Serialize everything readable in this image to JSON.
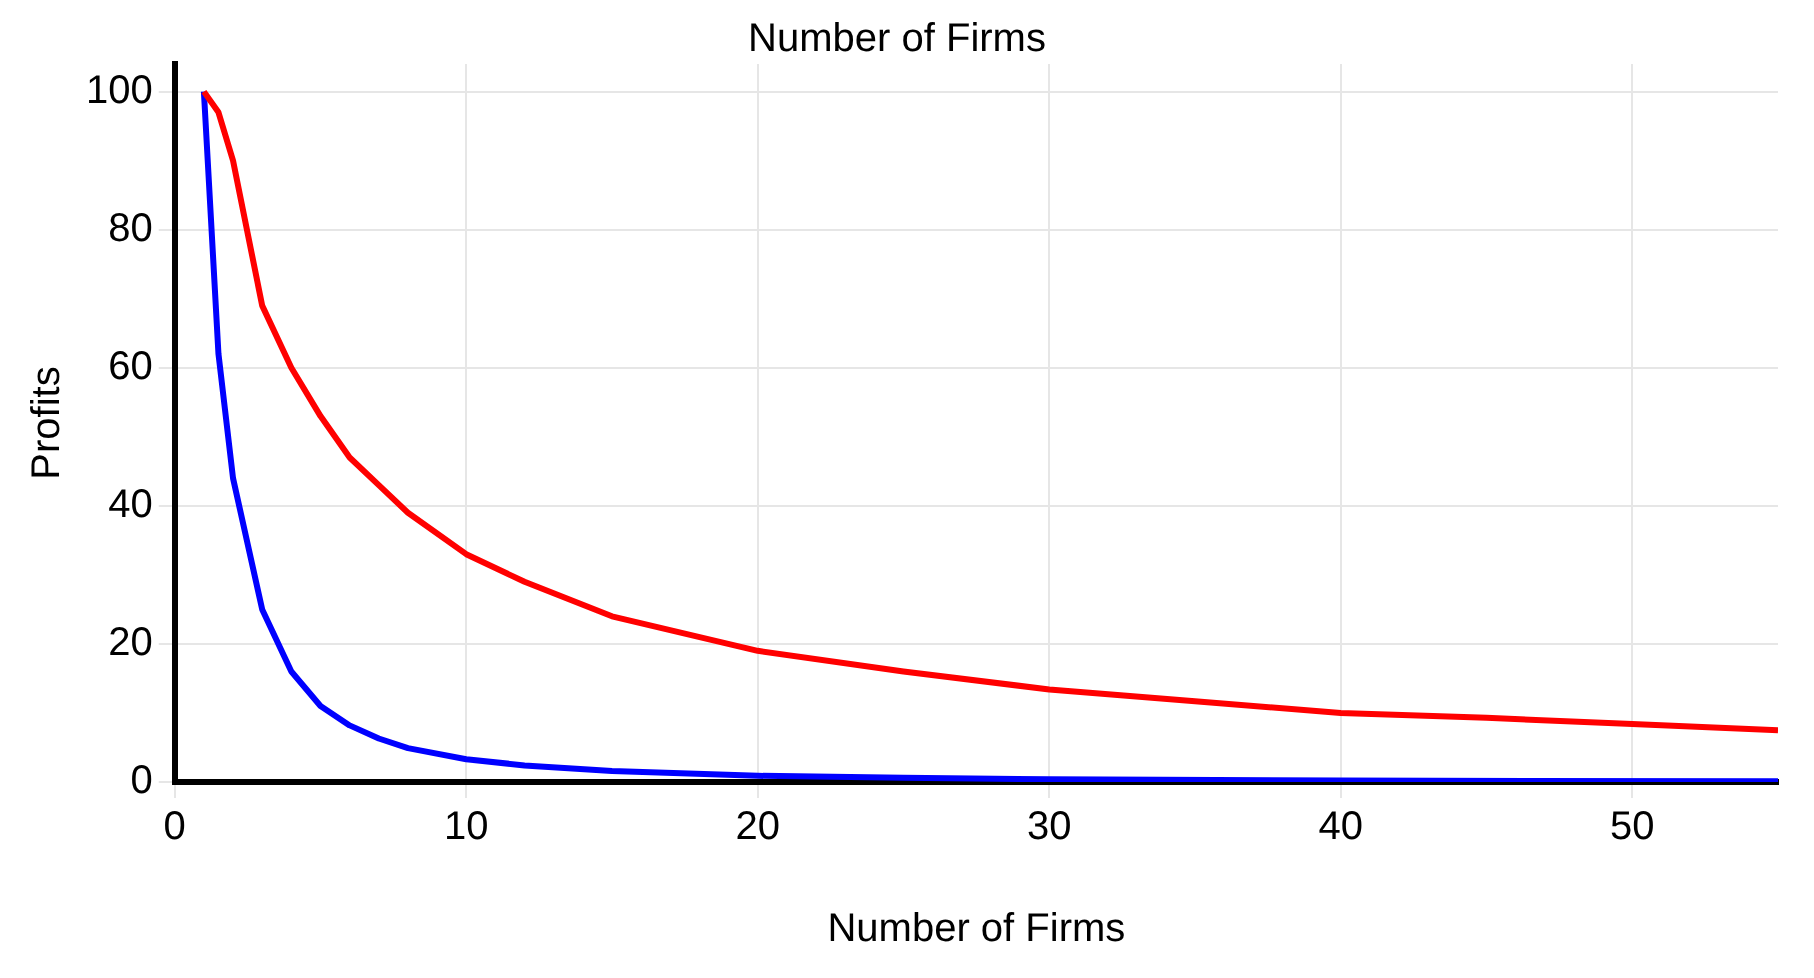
{
  "chart_data": {
    "type": "line",
    "title": "Number of Firms",
    "xlabel": "Number of Firms",
    "ylabel": "Profits",
    "xlim": [
      0,
      55
    ],
    "xticks": [
      0,
      10,
      20,
      30,
      40,
      50
    ],
    "ylim": [
      0,
      104
    ],
    "yticks": [
      0,
      20,
      40,
      60,
      80,
      100
    ],
    "grid": true,
    "legend": false,
    "marker": "none",
    "series": [
      {
        "color": "#ff0000",
        "x": [
          1,
          1.5,
          2,
          3,
          4,
          5,
          6,
          7,
          8,
          10,
          12,
          15,
          20,
          25,
          30,
          35,
          40,
          45,
          50,
          55
        ],
        "values": [
          100,
          97,
          90,
          69,
          60,
          53,
          47,
          43,
          39,
          33,
          29,
          24,
          19,
          16,
          13.4,
          11.7,
          10,
          9.3,
          8.4,
          7.5
        ]
      },
      {
        "color": "#0000ff",
        "x": [
          1,
          1.5,
          2,
          3,
          4,
          5,
          6,
          7,
          8,
          10,
          12,
          15,
          20,
          25,
          30,
          40,
          55
        ],
        "values": [
          100,
          62,
          44,
          25,
          16,
          11,
          8.2,
          6.3,
          4.9,
          3.3,
          2.4,
          1.6,
          0.9,
          0.6,
          0.4,
          0.2,
          0.1
        ]
      }
    ]
  }
}
